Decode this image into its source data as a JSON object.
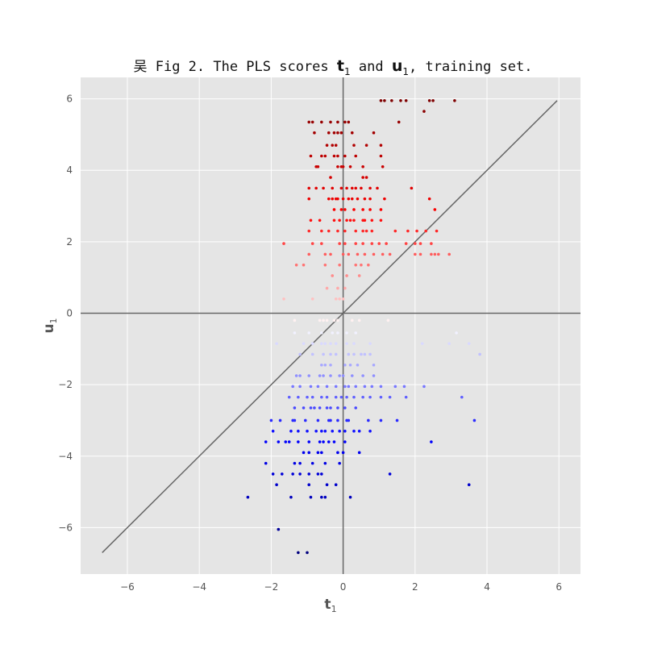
{
  "chart_data": {
    "type": "scatter",
    "title": {
      "prefix": "吴 Fig 2. The PLS scores ",
      "t_sym": "t",
      "t_sub": "1",
      "and": " and ",
      "u_sym": "u",
      "u_sub": "1",
      "suffix": ", training set."
    },
    "xlabel": {
      "sym": "t",
      "sub": "1"
    },
    "ylabel": {
      "sym": "u",
      "sub": "1"
    },
    "xlim": [
      -7.3,
      6.6
    ],
    "ylim": [
      -7.3,
      6.6
    ],
    "xticks": [
      -6,
      -4,
      -2,
      0,
      2,
      4,
      6
    ],
    "yticks": [
      -6,
      -4,
      -2,
      0,
      2,
      4,
      6
    ],
    "xtick_labels": [
      "−6",
      "−4",
      "−2",
      "0",
      "2",
      "4",
      "6"
    ],
    "ytick_labels": [
      "−6",
      "−4",
      "−2",
      "0",
      "2",
      "4",
      "6"
    ],
    "grid": true,
    "reference_lines": {
      "horizontal_y": 0,
      "vertical_x": 0,
      "diagonal": {
        "from": [
          -6.7,
          -6.7
        ],
        "to": [
          5.95,
          5.95
        ]
      }
    },
    "color_scale": {
      "low": "#00007f",
      "mid": "#ffffff",
      "high": "#7f0000",
      "vmin": -6.7,
      "vmax": 5.95
    },
    "colors": {
      "background": "#e5e5e5",
      "grid": "#ffffff",
      "reference": "#666666"
    },
    "points": [
      [
        1.05,
        5.95
      ],
      [
        1.15,
        5.95
      ],
      [
        1.35,
        5.95
      ],
      [
        1.6,
        5.95
      ],
      [
        1.75,
        5.95
      ],
      [
        2.4,
        5.95
      ],
      [
        2.5,
        5.95
      ],
      [
        3.1,
        5.95
      ],
      [
        2.25,
        5.65
      ],
      [
        1.55,
        5.35
      ],
      [
        -0.95,
        5.35
      ],
      [
        -0.85,
        5.35
      ],
      [
        -0.6,
        5.35
      ],
      [
        -0.35,
        5.35
      ],
      [
        -0.15,
        5.35
      ],
      [
        0.05,
        5.35
      ],
      [
        0.15,
        5.35
      ],
      [
        -0.8,
        5.05
      ],
      [
        -0.4,
        5.05
      ],
      [
        -0.25,
        5.05
      ],
      [
        -0.15,
        5.05
      ],
      [
        -0.05,
        5.05
      ],
      [
        0.25,
        5.05
      ],
      [
        0.85,
        5.05
      ],
      [
        -0.45,
        4.7
      ],
      [
        -0.3,
        4.7
      ],
      [
        -0.2,
        4.7
      ],
      [
        0.3,
        4.7
      ],
      [
        0.65,
        4.7
      ],
      [
        1.05,
        4.7
      ],
      [
        -0.9,
        4.4
      ],
      [
        -0.6,
        4.4
      ],
      [
        -0.5,
        4.4
      ],
      [
        -0.25,
        4.4
      ],
      [
        -0.15,
        4.4
      ],
      [
        0.05,
        4.4
      ],
      [
        0.35,
        4.4
      ],
      [
        1.05,
        4.4
      ],
      [
        -0.75,
        4.1
      ],
      [
        -0.7,
        4.1
      ],
      [
        -0.15,
        4.1
      ],
      [
        -0.05,
        4.1
      ],
      [
        0.0,
        4.1
      ],
      [
        0.2,
        4.1
      ],
      [
        0.55,
        4.1
      ],
      [
        1.1,
        4.1
      ],
      [
        -0.35,
        3.8
      ],
      [
        0.55,
        3.8
      ],
      [
        0.65,
        3.8
      ],
      [
        -0.95,
        3.5
      ],
      [
        -0.75,
        3.5
      ],
      [
        -0.55,
        3.5
      ],
      [
        -0.3,
        3.5
      ],
      [
        -0.05,
        3.5
      ],
      [
        0.1,
        3.5
      ],
      [
        0.25,
        3.5
      ],
      [
        0.35,
        3.5
      ],
      [
        0.5,
        3.5
      ],
      [
        0.75,
        3.5
      ],
      [
        0.95,
        3.5
      ],
      [
        1.9,
        3.5
      ],
      [
        -0.95,
        3.2
      ],
      [
        -0.4,
        3.2
      ],
      [
        -0.3,
        3.2
      ],
      [
        -0.2,
        3.2
      ],
      [
        -0.15,
        3.2
      ],
      [
        0.0,
        3.2
      ],
      [
        0.15,
        3.2
      ],
      [
        0.25,
        3.2
      ],
      [
        0.4,
        3.2
      ],
      [
        0.6,
        3.2
      ],
      [
        0.75,
        3.2
      ],
      [
        1.15,
        3.2
      ],
      [
        2.4,
        3.2
      ],
      [
        -0.25,
        2.9
      ],
      [
        -0.05,
        2.9
      ],
      [
        0.05,
        2.9
      ],
      [
        0.3,
        2.9
      ],
      [
        0.55,
        2.9
      ],
      [
        0.75,
        2.9
      ],
      [
        1.05,
        2.9
      ],
      [
        2.55,
        2.9
      ],
      [
        -0.9,
        2.6
      ],
      [
        -0.65,
        2.6
      ],
      [
        -0.25,
        2.6
      ],
      [
        -0.1,
        2.6
      ],
      [
        0.1,
        2.6
      ],
      [
        0.2,
        2.6
      ],
      [
        0.3,
        2.6
      ],
      [
        0.55,
        2.6
      ],
      [
        0.6,
        2.6
      ],
      [
        0.8,
        2.6
      ],
      [
        1.05,
        2.6
      ],
      [
        -0.95,
        2.3
      ],
      [
        -0.6,
        2.3
      ],
      [
        -0.4,
        2.3
      ],
      [
        -0.15,
        2.3
      ],
      [
        0.05,
        2.3
      ],
      [
        0.35,
        2.3
      ],
      [
        0.55,
        2.3
      ],
      [
        0.65,
        2.3
      ],
      [
        0.8,
        2.3
      ],
      [
        1.45,
        2.3
      ],
      [
        1.8,
        2.3
      ],
      [
        2.05,
        2.3
      ],
      [
        2.3,
        2.3
      ],
      [
        2.6,
        2.3
      ],
      [
        -1.65,
        1.95
      ],
      [
        -0.85,
        1.95
      ],
      [
        -0.6,
        1.95
      ],
      [
        -0.1,
        1.95
      ],
      [
        0.05,
        1.95
      ],
      [
        0.35,
        1.95
      ],
      [
        0.55,
        1.95
      ],
      [
        0.8,
        1.95
      ],
      [
        1.0,
        1.95
      ],
      [
        1.2,
        1.95
      ],
      [
        1.75,
        1.95
      ],
      [
        2.0,
        1.95
      ],
      [
        2.15,
        1.95
      ],
      [
        2.45,
        1.95
      ],
      [
        -0.95,
        1.65
      ],
      [
        -0.5,
        1.65
      ],
      [
        -0.35,
        1.65
      ],
      [
        0.0,
        1.65
      ],
      [
        0.15,
        1.65
      ],
      [
        0.4,
        1.65
      ],
      [
        0.6,
        1.65
      ],
      [
        0.85,
        1.65
      ],
      [
        1.1,
        1.65
      ],
      [
        1.3,
        1.65
      ],
      [
        2.0,
        1.65
      ],
      [
        2.15,
        1.65
      ],
      [
        2.45,
        1.65
      ],
      [
        2.55,
        1.65
      ],
      [
        2.65,
        1.65
      ],
      [
        2.95,
        1.65
      ],
      [
        -1.3,
        1.35
      ],
      [
        -1.1,
        1.35
      ],
      [
        -0.5,
        1.35
      ],
      [
        -0.1,
        1.35
      ],
      [
        0.35,
        1.35
      ],
      [
        0.5,
        1.35
      ],
      [
        0.7,
        1.35
      ],
      [
        -0.3,
        1.05
      ],
      [
        0.1,
        1.05
      ],
      [
        0.45,
        1.05
      ],
      [
        -0.45,
        0.7
      ],
      [
        -0.15,
        0.7
      ],
      [
        0.05,
        0.7
      ],
      [
        -1.65,
        0.4
      ],
      [
        -0.85,
        0.4
      ],
      [
        -0.2,
        0.4
      ],
      [
        -0.1,
        0.4
      ],
      [
        0.0,
        0.4
      ],
      [
        -1.35,
        -0.2
      ],
      [
        -0.65,
        -0.2
      ],
      [
        -0.55,
        -0.2
      ],
      [
        -0.45,
        -0.2
      ],
      [
        -0.25,
        -0.2
      ],
      [
        -0.15,
        -0.2
      ],
      [
        0.25,
        -0.2
      ],
      [
        0.45,
        -0.2
      ],
      [
        1.25,
        -0.2
      ],
      [
        -1.35,
        -0.55
      ],
      [
        -0.95,
        -0.55
      ],
      [
        -0.6,
        -0.55
      ],
      [
        -0.3,
        -0.55
      ],
      [
        -0.15,
        -0.55
      ],
      [
        0.1,
        -0.55
      ],
      [
        0.35,
        -0.55
      ],
      [
        3.15,
        -0.55
      ],
      [
        -1.85,
        -0.85
      ],
      [
        -1.1,
        -0.85
      ],
      [
        -0.85,
        -0.85
      ],
      [
        -0.6,
        -0.85
      ],
      [
        -0.5,
        -0.85
      ],
      [
        -0.35,
        -0.85
      ],
      [
        -0.2,
        -0.85
      ],
      [
        0.1,
        -0.85
      ],
      [
        0.3,
        -0.85
      ],
      [
        0.75,
        -0.85
      ],
      [
        2.2,
        -0.85
      ],
      [
        2.95,
        -0.85
      ],
      [
        3.5,
        -0.85
      ],
      [
        -1.2,
        -1.15
      ],
      [
        -0.85,
        -1.15
      ],
      [
        -0.55,
        -1.15
      ],
      [
        -0.35,
        -1.15
      ],
      [
        -0.2,
        -1.15
      ],
      [
        0.15,
        -1.15
      ],
      [
        0.3,
        -1.15
      ],
      [
        0.5,
        -1.15
      ],
      [
        0.6,
        -1.15
      ],
      [
        0.75,
        -1.15
      ],
      [
        3.8,
        -1.15
      ],
      [
        -0.6,
        -1.45
      ],
      [
        -0.5,
        -1.45
      ],
      [
        -0.35,
        -1.45
      ],
      [
        0.05,
        -1.45
      ],
      [
        0.2,
        -1.45
      ],
      [
        0.4,
        -1.45
      ],
      [
        0.85,
        -1.45
      ],
      [
        -1.3,
        -1.75
      ],
      [
        -1.2,
        -1.75
      ],
      [
        -0.95,
        -1.75
      ],
      [
        -0.65,
        -1.75
      ],
      [
        -0.55,
        -1.75
      ],
      [
        -0.35,
        -1.75
      ],
      [
        -0.1,
        -1.75
      ],
      [
        0.0,
        -1.75
      ],
      [
        0.25,
        -1.75
      ],
      [
        0.55,
        -1.75
      ],
      [
        0.85,
        -1.75
      ],
      [
        -1.4,
        -2.05
      ],
      [
        -1.2,
        -2.05
      ],
      [
        -0.9,
        -2.05
      ],
      [
        -0.7,
        -2.05
      ],
      [
        -0.45,
        -2.05
      ],
      [
        -0.2,
        -2.05
      ],
      [
        0.05,
        -2.05
      ],
      [
        0.15,
        -2.05
      ],
      [
        0.35,
        -2.05
      ],
      [
        0.6,
        -2.05
      ],
      [
        0.8,
        -2.05
      ],
      [
        1.05,
        -2.05
      ],
      [
        1.45,
        -2.05
      ],
      [
        1.7,
        -2.05
      ],
      [
        2.25,
        -2.05
      ],
      [
        -1.5,
        -2.35
      ],
      [
        -1.25,
        -2.35
      ],
      [
        -1.0,
        -2.35
      ],
      [
        -0.85,
        -2.35
      ],
      [
        -0.6,
        -2.35
      ],
      [
        -0.45,
        -2.35
      ],
      [
        -0.2,
        -2.35
      ],
      [
        -0.05,
        -2.35
      ],
      [
        0.1,
        -2.35
      ],
      [
        0.3,
        -2.35
      ],
      [
        0.55,
        -2.35
      ],
      [
        0.75,
        -2.35
      ],
      [
        1.05,
        -2.35
      ],
      [
        1.3,
        -2.35
      ],
      [
        1.75,
        -2.35
      ],
      [
        3.3,
        -2.35
      ],
      [
        -1.35,
        -2.65
      ],
      [
        -1.1,
        -2.65
      ],
      [
        -0.9,
        -2.65
      ],
      [
        -0.8,
        -2.65
      ],
      [
        -0.65,
        -2.65
      ],
      [
        -0.45,
        -2.65
      ],
      [
        -0.35,
        -2.65
      ],
      [
        -0.15,
        -2.65
      ],
      [
        0.05,
        -2.65
      ],
      [
        0.35,
        -2.65
      ],
      [
        -2.0,
        -3.0
      ],
      [
        -1.75,
        -3.0
      ],
      [
        -1.4,
        -3.0
      ],
      [
        -1.35,
        -3.0
      ],
      [
        -1.05,
        -3.0
      ],
      [
        -0.7,
        -3.0
      ],
      [
        -0.4,
        -3.0
      ],
      [
        -0.35,
        -3.0
      ],
      [
        -0.15,
        -3.0
      ],
      [
        0.1,
        -3.0
      ],
      [
        0.15,
        -3.0
      ],
      [
        0.7,
        -3.0
      ],
      [
        1.05,
        -3.0
      ],
      [
        1.5,
        -3.0
      ],
      [
        3.65,
        -3.0
      ],
      [
        -1.95,
        -3.3
      ],
      [
        -1.45,
        -3.3
      ],
      [
        -1.25,
        -3.3
      ],
      [
        -1.0,
        -3.3
      ],
      [
        -0.75,
        -3.3
      ],
      [
        -0.6,
        -3.3
      ],
      [
        -0.5,
        -3.3
      ],
      [
        -0.3,
        -3.3
      ],
      [
        -0.1,
        -3.3
      ],
      [
        0.05,
        -3.3
      ],
      [
        0.3,
        -3.3
      ],
      [
        0.45,
        -3.3
      ],
      [
        0.75,
        -3.3
      ],
      [
        -2.15,
        -3.6
      ],
      [
        -1.8,
        -3.6
      ],
      [
        -1.6,
        -3.6
      ],
      [
        -1.5,
        -3.6
      ],
      [
        -1.25,
        -3.6
      ],
      [
        -0.95,
        -3.6
      ],
      [
        -0.65,
        -3.6
      ],
      [
        -0.55,
        -3.6
      ],
      [
        -0.4,
        -3.6
      ],
      [
        -0.25,
        -3.6
      ],
      [
        0.05,
        -3.6
      ],
      [
        2.45,
        -3.6
      ],
      [
        -1.1,
        -3.9
      ],
      [
        -0.95,
        -3.9
      ],
      [
        -0.7,
        -3.9
      ],
      [
        -0.6,
        -3.9
      ],
      [
        -0.15,
        -3.9
      ],
      [
        0.0,
        -3.9
      ],
      [
        0.45,
        -3.9
      ],
      [
        -2.15,
        -4.2
      ],
      [
        -1.35,
        -4.2
      ],
      [
        -1.2,
        -4.2
      ],
      [
        -0.85,
        -4.2
      ],
      [
        -0.5,
        -4.2
      ],
      [
        -0.1,
        -4.2
      ],
      [
        -1.95,
        -4.5
      ],
      [
        -1.7,
        -4.5
      ],
      [
        -1.4,
        -4.5
      ],
      [
        -1.2,
        -4.5
      ],
      [
        -0.95,
        -4.5
      ],
      [
        -0.7,
        -4.5
      ],
      [
        -0.6,
        -4.5
      ],
      [
        1.3,
        -4.5
      ],
      [
        -1.85,
        -4.8
      ],
      [
        -0.95,
        -4.8
      ],
      [
        -0.45,
        -4.8
      ],
      [
        -0.2,
        -4.8
      ],
      [
        3.5,
        -4.8
      ],
      [
        -2.65,
        -5.15
      ],
      [
        -1.45,
        -5.15
      ],
      [
        -0.9,
        -5.15
      ],
      [
        -0.6,
        -5.15
      ],
      [
        -0.5,
        -5.15
      ],
      [
        0.2,
        -5.15
      ],
      [
        -1.8,
        -6.05
      ],
      [
        -1.25,
        -6.7
      ],
      [
        -1.0,
        -6.7
      ]
    ]
  }
}
